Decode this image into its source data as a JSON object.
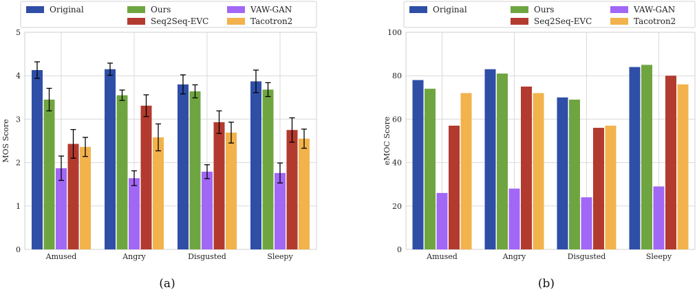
{
  "chart_data": [
    {
      "type": "bar",
      "caption": "(a)",
      "ylabel": "MOS Score",
      "ylim": [
        0,
        5
      ],
      "yticks": [
        "0",
        "1",
        "2",
        "3",
        "4",
        "5"
      ],
      "categories": [
        "Amused",
        "Angry",
        "Disgusted",
        "Sleepy"
      ],
      "grid": true,
      "legend_placement": "top",
      "error_bars": true,
      "series": [
        {
          "name": "Original",
          "color": "#2f4ea6",
          "values": [
            4.13,
            4.15,
            3.8,
            3.87
          ],
          "errors": [
            0.19,
            0.14,
            0.22,
            0.26
          ]
        },
        {
          "name": "Ours",
          "color": "#6fa541",
          "values": [
            3.45,
            3.55,
            3.64,
            3.68
          ],
          "errors": [
            0.26,
            0.12,
            0.15,
            0.16
          ]
        },
        {
          "name": "VAW-GAN",
          "color": "#a167f5",
          "values": [
            1.87,
            1.64,
            1.79,
            1.76
          ],
          "errors": [
            0.28,
            0.17,
            0.16,
            0.23
          ]
        },
        {
          "name": "Seq2Seq-EVC",
          "color": "#b33a2e",
          "values": [
            2.43,
            3.31,
            2.93,
            2.75
          ],
          "errors": [
            0.33,
            0.25,
            0.26,
            0.28
          ]
        },
        {
          "name": "Tacotron2",
          "color": "#f2b24c",
          "values": [
            2.36,
            2.58,
            2.69,
            2.55
          ],
          "errors": [
            0.22,
            0.31,
            0.24,
            0.22
          ]
        }
      ]
    },
    {
      "type": "bar",
      "caption": "(b)",
      "ylabel": "eMOC Score",
      "ylim": [
        0,
        100
      ],
      "yticks": [
        "0",
        "20",
        "40",
        "60",
        "80",
        "100"
      ],
      "categories": [
        "Amused",
        "Angry",
        "Disgusted",
        "Sleepy"
      ],
      "grid": true,
      "legend_placement": "top",
      "error_bars": false,
      "series": [
        {
          "name": "Original",
          "color": "#2f4ea6",
          "values": [
            78,
            83,
            70,
            84
          ]
        },
        {
          "name": "Ours",
          "color": "#6fa541",
          "values": [
            74,
            81,
            69,
            85
          ]
        },
        {
          "name": "VAW-GAN",
          "color": "#a167f5",
          "values": [
            26,
            28,
            24,
            29
          ]
        },
        {
          "name": "Seq2Seq-EVC",
          "color": "#b33a2e",
          "values": [
            57,
            75,
            56,
            80
          ]
        },
        {
          "name": "Tacotron2",
          "color": "#f2b24c",
          "values": [
            72,
            72,
            57,
            76
          ]
        }
      ]
    }
  ]
}
